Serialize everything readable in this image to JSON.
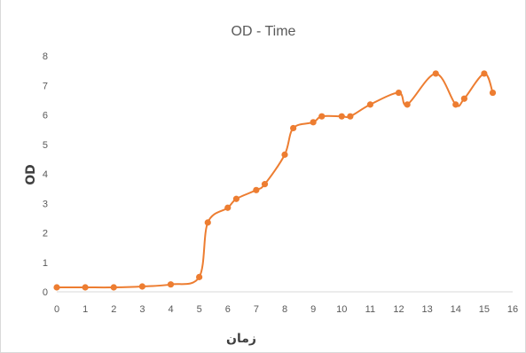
{
  "chart_data": {
    "type": "line",
    "title": "OD - Time",
    "xlabel": "زمان",
    "ylabel": "OD",
    "xlim": [
      0,
      16
    ],
    "ylim": [
      0,
      8
    ],
    "x_ticks": [
      "0",
      "1",
      "2",
      "3",
      "4",
      "5",
      "6",
      "7",
      "8",
      "9",
      "10",
      "11",
      "12",
      "13",
      "14",
      "15",
      "16"
    ],
    "y_ticks": [
      "0",
      "1",
      "2",
      "3",
      "4",
      "5",
      "6",
      "7",
      "8"
    ],
    "grid": false,
    "legend": "none",
    "series": [
      {
        "color": "#ED7D31",
        "marker": "circle",
        "smooth": true,
        "x": [
          0,
          1,
          2,
          3,
          4,
          5,
          5.3,
          6,
          6.3,
          7,
          7.3,
          8,
          8.3,
          9,
          9.3,
          10,
          10.3,
          11,
          12,
          12.3,
          13.3,
          14,
          14.3,
          15,
          15.3
        ],
        "y": [
          0.15,
          0.15,
          0.15,
          0.18,
          0.25,
          0.5,
          2.35,
          2.85,
          3.15,
          3.45,
          3.65,
          4.65,
          5.55,
          5.75,
          5.95,
          5.95,
          5.95,
          6.35,
          6.75,
          6.35,
          7.4,
          6.35,
          6.55,
          7.4,
          6.75
        ]
      }
    ]
  }
}
